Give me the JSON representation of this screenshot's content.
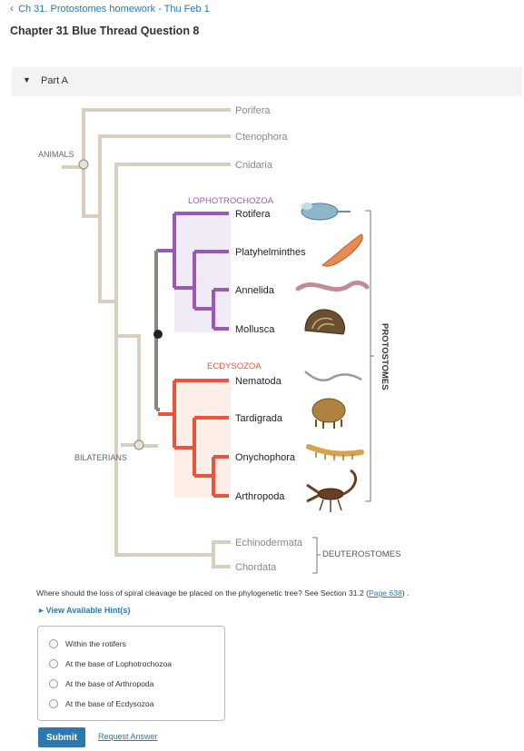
{
  "nav": {
    "back_label": "Ch 31. Protostomes homework - Thu Feb 1"
  },
  "question": {
    "title": "Chapter 31 Blue Thread Question 8"
  },
  "part": {
    "label": "Part A"
  },
  "tree": {
    "group_labels": {
      "animals": "ANIMALS",
      "bilaterians": "BILATERIANS",
      "lophotrochozoa": "LOPHOTROCHOZOA",
      "ecdysozoa": "ECDYSOZOA",
      "protostomes": "PROTOSTOMES",
      "deuterostomes": "DEUTEROSTOMES"
    },
    "taxa": {
      "porifera": "Porifera",
      "ctenophora": "Ctenophora",
      "cnidaria": "Cnidaria",
      "rotifera": "Rotifera",
      "platyhelminthes": "Platyhelminthes",
      "annelida": "Annelida",
      "mollusca": "Mollusca",
      "nematoda": "Nematoda",
      "tardigrada": "Tardigrada",
      "onychophora": "Onychophora",
      "arthropoda": "Arthropoda",
      "echinodermata": "Echinodermata",
      "chordata": "Chordata"
    },
    "colors": {
      "stem": "#d9cfc0",
      "lophotrochozoa": "#9b59b6",
      "lopho_fill": "#f1ebf7",
      "ecdysozoa": "#e8553c",
      "ecdy_fill": "#fdeee8",
      "protostome_stem": "#888a80"
    }
  },
  "prompt": {
    "text": "Where should the loss of spiral cleavage be placed on the phylogenetic tree? See Section 31.2 (",
    "link": "Page 638",
    "suffix": ") ."
  },
  "hint": {
    "label": "View Available Hint(s)"
  },
  "choices": [
    "Within the rotifers",
    "At the base of Lophotrochozoa",
    "At the base of Arthropoda",
    "At the base of Ecdysozoa"
  ],
  "actions": {
    "submit": "Submit",
    "request": "Request Answer"
  }
}
